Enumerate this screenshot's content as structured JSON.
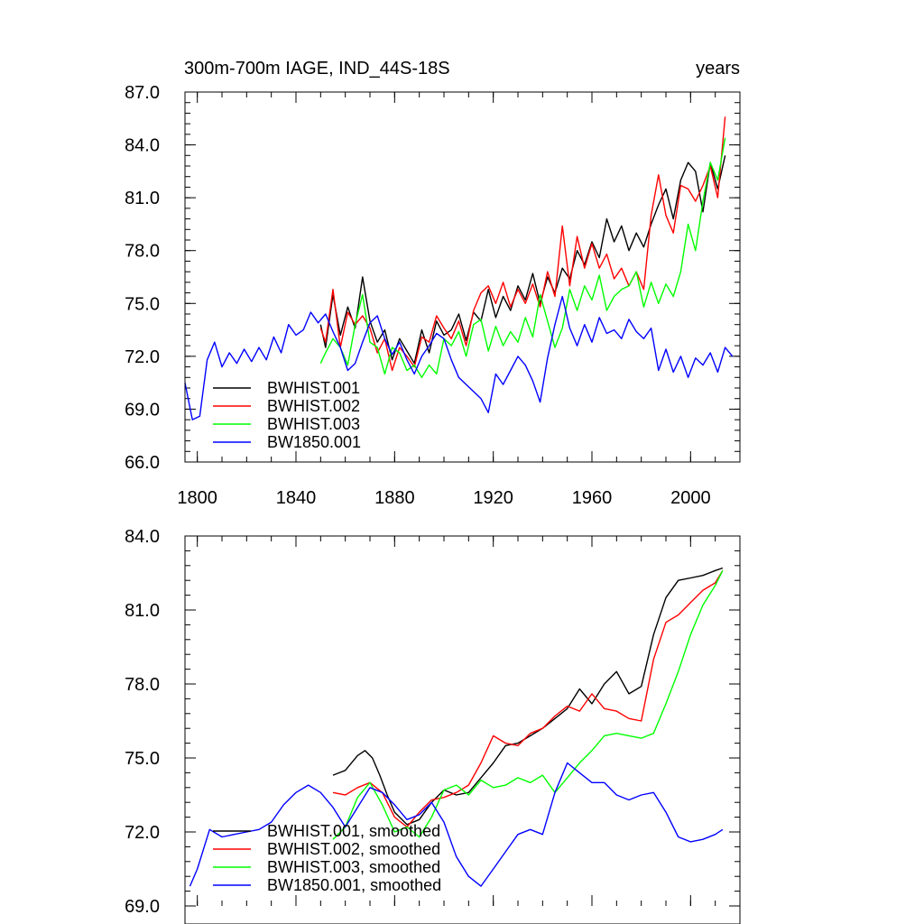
{
  "chart_data": [
    {
      "type": "line",
      "title": "300m-700m IAGE, IND_44S-18S",
      "units": "years",
      "xlim": [
        1795,
        2020
      ],
      "ylim": [
        66.0,
        87.0
      ],
      "y_ticks": [
        "66.0",
        "69.0",
        "72.0",
        "75.0",
        "78.0",
        "81.0",
        "84.0",
        "87.0"
      ],
      "x_ticks": [
        "1800",
        "1840",
        "1880",
        "1920",
        "1960",
        "2000"
      ],
      "legend_position": "bottom-left",
      "series": [
        {
          "name": "BWHIST.001",
          "color": "#000000",
          "x": [
            1850,
            1852,
            1855,
            1858,
            1861,
            1864,
            1867,
            1870,
            1873,
            1876,
            1879,
            1882,
            1885,
            1888,
            1891,
            1894,
            1897,
            1900,
            1903,
            1906,
            1909,
            1912,
            1915,
            1918,
            1921,
            1924,
            1927,
            1930,
            1933,
            1936,
            1939,
            1942,
            1945,
            1948,
            1951,
            1954,
            1957,
            1960,
            1963,
            1966,
            1969,
            1972,
            1975,
            1978,
            1981,
            1984,
            1987,
            1990,
            1993,
            1996,
            1999,
            2002,
            2005,
            2008,
            2011,
            2014
          ],
          "y": [
            73.8,
            72.5,
            75.5,
            73.2,
            74.8,
            73.6,
            76.5,
            74.0,
            72.8,
            73.5,
            71.8,
            73.0,
            72.3,
            71.6,
            73.5,
            72.2,
            74.0,
            73.2,
            73.5,
            74.4,
            72.9,
            74.5,
            74.0,
            75.8,
            74.2,
            75.4,
            74.6,
            76.0,
            75.2,
            76.7,
            75.0,
            76.5,
            75.6,
            77.0,
            76.4,
            78.0,
            77.2,
            78.5,
            77.6,
            79.8,
            78.5,
            79.4,
            78.0,
            79.0,
            78.2,
            79.5,
            80.6,
            81.5,
            79.8,
            82.0,
            83.0,
            82.5,
            80.2,
            83.0,
            81.5,
            83.4
          ]
        },
        {
          "name": "BWHIST.002",
          "color": "#ff0000",
          "x": [
            1850,
            1852,
            1855,
            1858,
            1861,
            1864,
            1867,
            1870,
            1873,
            1876,
            1879,
            1882,
            1885,
            1888,
            1891,
            1894,
            1897,
            1900,
            1903,
            1906,
            1909,
            1912,
            1915,
            1918,
            1921,
            1924,
            1927,
            1930,
            1933,
            1936,
            1939,
            1942,
            1945,
            1948,
            1951,
            1954,
            1957,
            1960,
            1963,
            1966,
            1969,
            1972,
            1975,
            1978,
            1981,
            1984,
            1987,
            1990,
            1993,
            1996,
            1999,
            2002,
            2005,
            2008,
            2011,
            2014
          ],
          "y": [
            73.6,
            72.8,
            75.8,
            72.5,
            74.5,
            73.8,
            74.3,
            73.6,
            72.2,
            73.0,
            71.2,
            72.5,
            72.0,
            71.4,
            73.1,
            72.8,
            74.3,
            73.6,
            73.0,
            74.0,
            72.6,
            74.6,
            75.6,
            76.0,
            75.0,
            76.2,
            74.8,
            75.8,
            75.0,
            76.1,
            74.8,
            76.8,
            75.4,
            79.4,
            76.0,
            78.8,
            77.0,
            78.4,
            77.0,
            77.8,
            76.4,
            77.0,
            76.0,
            76.8,
            75.8,
            80.0,
            82.3,
            80.0,
            79.0,
            81.7,
            81.5,
            80.8,
            81.7,
            82.8,
            81.0,
            85.6
          ]
        },
        {
          "name": "BWHIST.003",
          "color": "#00ff00",
          "x": [
            1850,
            1852,
            1855,
            1858,
            1861,
            1864,
            1867,
            1870,
            1873,
            1876,
            1879,
            1882,
            1885,
            1888,
            1891,
            1894,
            1897,
            1900,
            1903,
            1906,
            1909,
            1912,
            1915,
            1918,
            1921,
            1924,
            1927,
            1930,
            1933,
            1936,
            1939,
            1942,
            1945,
            1948,
            1951,
            1954,
            1957,
            1960,
            1963,
            1966,
            1969,
            1972,
            1975,
            1978,
            1981,
            1984,
            1987,
            1990,
            1993,
            1996,
            1999,
            2002,
            2005,
            2008,
            2011,
            2014
          ],
          "y": [
            71.6,
            72.2,
            73.0,
            72.5,
            71.5,
            73.8,
            75.5,
            72.8,
            72.5,
            71.0,
            72.5,
            72.2,
            71.2,
            71.5,
            70.8,
            71.5,
            71.0,
            73.0,
            72.6,
            73.4,
            72.0,
            73.8,
            74.1,
            72.3,
            73.7,
            72.6,
            73.4,
            72.8,
            74.2,
            73.1,
            75.5,
            74.0,
            72.5,
            73.6,
            75.8,
            74.6,
            76.0,
            75.2,
            76.6,
            74.6,
            75.4,
            75.8,
            76.0,
            76.8,
            74.8,
            76.2,
            75.0,
            76.1,
            75.4,
            76.8,
            79.5,
            78.0,
            80.8,
            83.0,
            82.0,
            84.4
          ]
        },
        {
          "name": "BW1850.001",
          "color": "#0000ff",
          "x": [
            1795,
            1798,
            1801,
            1804,
            1807,
            1810,
            1813,
            1816,
            1819,
            1822,
            1825,
            1828,
            1831,
            1834,
            1837,
            1840,
            1843,
            1846,
            1849,
            1852,
            1855,
            1858,
            1861,
            1864,
            1867,
            1870,
            1873,
            1876,
            1879,
            1882,
            1885,
            1888,
            1891,
            1894,
            1897,
            1900,
            1903,
            1906,
            1909,
            1912,
            1915,
            1918,
            1921,
            1924,
            1927,
            1930,
            1933,
            1936,
            1939,
            1942,
            1945,
            1948,
            1951,
            1954,
            1957,
            1960,
            1963,
            1966,
            1969,
            1972,
            1975,
            1978,
            1981,
            1984,
            1987,
            1990,
            1993,
            1996,
            1999,
            2002,
            2005,
            2008,
            2011,
            2014,
            2017
          ],
          "y": [
            70.5,
            68.4,
            68.6,
            71.8,
            72.8,
            71.4,
            72.2,
            71.6,
            72.4,
            71.7,
            72.5,
            71.8,
            73.1,
            72.2,
            73.8,
            73.2,
            73.5,
            74.5,
            73.9,
            74.4,
            73.4,
            72.5,
            71.2,
            71.6,
            72.8,
            73.9,
            74.3,
            73.0,
            72.1,
            72.8,
            71.8,
            71.0,
            72.0,
            72.6,
            73.3,
            73.0,
            71.8,
            70.8,
            70.4,
            70.0,
            69.6,
            68.8,
            71.0,
            70.4,
            71.2,
            72.0,
            71.5,
            70.6,
            69.4,
            71.9,
            73.8,
            75.4,
            73.6,
            72.6,
            73.8,
            72.8,
            74.2,
            73.3,
            73.5,
            73.0,
            74.1,
            73.4,
            73.0,
            73.6,
            71.2,
            72.4,
            71.1,
            72.0,
            70.8,
            71.9,
            71.5,
            72.2,
            71.1,
            72.5,
            72.0
          ]
        }
      ]
    },
    {
      "type": "line",
      "xlim": [
        1795,
        2020
      ],
      "ylim": [
        69.0,
        84.0
      ],
      "y_ticks": [
        "69.0",
        "72.0",
        "75.0",
        "78.0",
        "81.0",
        "84.0"
      ],
      "legend_position": "bottom-left",
      "series": [
        {
          "name": "BWHIST.001, smoothed",
          "color": "#000000",
          "x": [
            1855,
            1860,
            1865,
            1868,
            1871,
            1874,
            1877,
            1880,
            1885,
            1890,
            1895,
            1900,
            1905,
            1910,
            1915,
            1920,
            1925,
            1930,
            1935,
            1940,
            1945,
            1950,
            1955,
            1960,
            1965,
            1970,
            1975,
            1980,
            1985,
            1990,
            1995,
            2000,
            2005,
            2010,
            2013
          ],
          "y": [
            74.3,
            74.5,
            75.1,
            75.3,
            75.0,
            74.3,
            73.5,
            72.8,
            72.3,
            72.5,
            73.2,
            73.7,
            73.5,
            73.6,
            74.2,
            74.8,
            75.5,
            75.6,
            75.9,
            76.2,
            76.6,
            77.0,
            77.8,
            77.2,
            78.0,
            78.5,
            77.6,
            77.9,
            80.0,
            81.5,
            82.2,
            82.3,
            82.4,
            82.6,
            82.7
          ]
        },
        {
          "name": "BWHIST.002, smoothed",
          "color": "#ff0000",
          "x": [
            1855,
            1860,
            1865,
            1870,
            1875,
            1880,
            1885,
            1890,
            1895,
            1900,
            1905,
            1910,
            1915,
            1920,
            1925,
            1930,
            1935,
            1940,
            1945,
            1950,
            1955,
            1960,
            1965,
            1970,
            1975,
            1980,
            1985,
            1990,
            1995,
            2000,
            2005,
            2010,
            2013
          ],
          "y": [
            73.6,
            73.5,
            73.8,
            74.0,
            73.6,
            72.6,
            72.2,
            72.8,
            73.3,
            73.4,
            73.6,
            73.9,
            74.8,
            75.9,
            75.6,
            75.5,
            76.0,
            76.2,
            76.7,
            77.1,
            76.9,
            77.6,
            77.0,
            76.9,
            76.6,
            76.5,
            79.0,
            80.5,
            80.8,
            81.3,
            81.8,
            82.1,
            82.6
          ]
        },
        {
          "name": "BWHIST.003, smoothed",
          "color": "#00ff00",
          "x": [
            1855,
            1860,
            1865,
            1870,
            1875,
            1880,
            1885,
            1890,
            1895,
            1900,
            1905,
            1910,
            1915,
            1920,
            1925,
            1930,
            1935,
            1940,
            1945,
            1950,
            1955,
            1960,
            1965,
            1970,
            1975,
            1980,
            1985,
            1990,
            1995,
            2000,
            2005,
            2010,
            2013
          ],
          "y": [
            71.7,
            72.2,
            73.4,
            74.0,
            73.1,
            72.0,
            72.2,
            71.8,
            72.6,
            73.7,
            73.9,
            73.5,
            74.1,
            73.8,
            73.9,
            74.2,
            74.0,
            74.3,
            73.6,
            74.2,
            74.8,
            75.3,
            75.9,
            76.0,
            75.9,
            75.8,
            76.0,
            77.2,
            78.5,
            80.0,
            81.2,
            82.0,
            82.6
          ]
        },
        {
          "name": "BW1850.001, smoothed",
          "color": "#0000ff",
          "x": [
            1797,
            1800,
            1805,
            1810,
            1815,
            1820,
            1825,
            1830,
            1835,
            1840,
            1845,
            1850,
            1855,
            1860,
            1865,
            1870,
            1875,
            1880,
            1885,
            1890,
            1895,
            1900,
            1905,
            1910,
            1915,
            1920,
            1925,
            1930,
            1935,
            1940,
            1945,
            1950,
            1955,
            1960,
            1965,
            1970,
            1975,
            1980,
            1985,
            1990,
            1995,
            2000,
            2005,
            2010,
            2013
          ],
          "y": [
            69.8,
            70.5,
            72.1,
            71.8,
            71.9,
            72.0,
            72.1,
            72.4,
            73.1,
            73.6,
            73.9,
            73.6,
            73.0,
            72.2,
            73.0,
            73.8,
            73.6,
            73.1,
            72.5,
            72.7,
            73.2,
            72.4,
            71.0,
            70.2,
            69.8,
            70.5,
            71.2,
            71.9,
            72.1,
            71.9,
            73.6,
            74.8,
            74.4,
            74.0,
            74.0,
            73.5,
            73.3,
            73.5,
            73.6,
            72.8,
            71.8,
            71.6,
            71.7,
            71.9,
            72.1
          ]
        }
      ]
    }
  ]
}
